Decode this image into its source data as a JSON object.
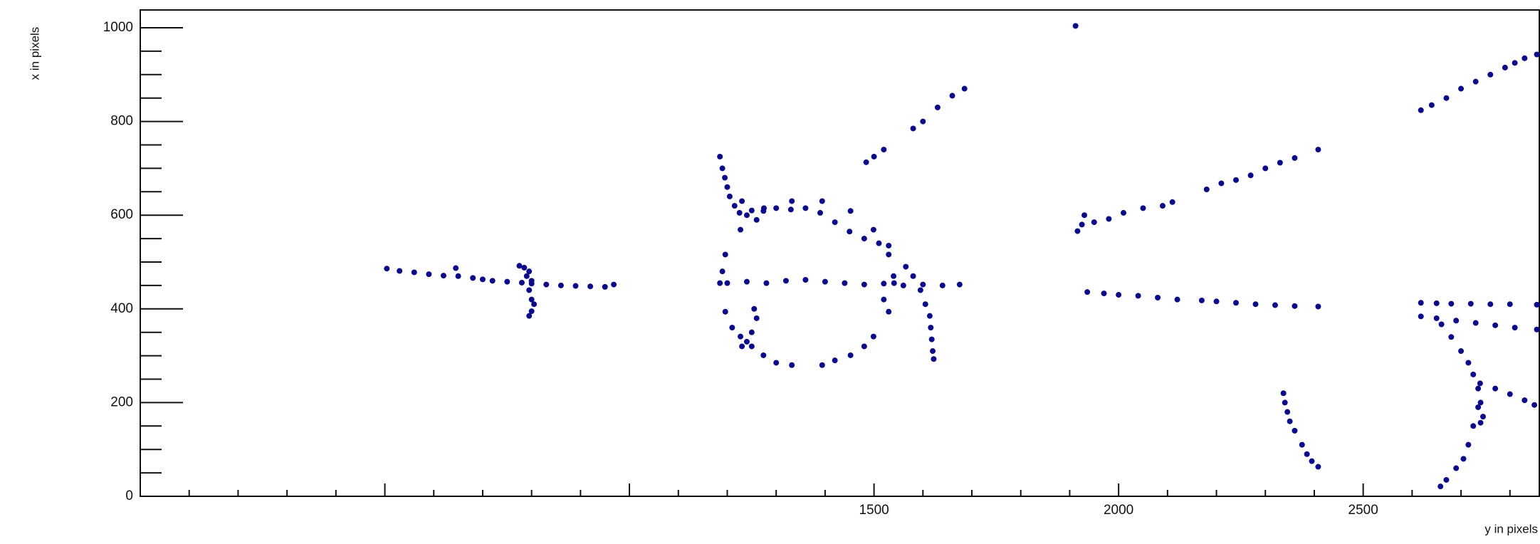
{
  "chart_data": {
    "type": "scatter",
    "x_label": "y in pixels",
    "y_label": "x in pixels",
    "color": "#0b0b8a",
    "xlim": [
      0,
      2860
    ],
    "ylim": [
      0,
      1038
    ],
    "xticks": [
      1500,
      2000,
      2500
    ],
    "yticks": [
      0,
      200,
      400,
      600,
      800,
      1000
    ],
    "x": [
      504,
      530,
      560,
      590,
      620,
      645,
      650,
      680,
      700,
      720,
      750,
      780,
      800,
      830,
      860,
      890,
      920,
      950,
      968,
      775,
      785,
      795,
      790,
      800,
      795,
      800,
      805,
      800,
      795,
      1541,
      1530,
      1499,
      1452,
      1394,
      1332,
      1274,
      1227,
      1196,
      1185,
      1196,
      1227,
      1274,
      1332,
      1394,
      1452,
      1499,
      1530,
      1540,
      1520,
      1300,
      1420,
      1480,
      1210,
      1250,
      1190,
      1185,
      1190,
      1195,
      1200,
      1205,
      1215,
      1225,
      1240,
      1250,
      1230,
      1260,
      1275,
      1300,
      1330,
      1360,
      1390,
      1420,
      1450,
      1480,
      1510,
      1530,
      1255,
      1260,
      1250,
      1240,
      1230,
      1200,
      1240,
      1280,
      1320,
      1360,
      1400,
      1440,
      1480,
      1520,
      1560,
      1600,
      1640,
      1675,
      1565,
      1580,
      1595,
      1605,
      1614,
      1616,
      1618,
      1620,
      1622,
      1484,
      1500,
      1520,
      1580,
      1600,
      1630,
      1660,
      1685,
      1912,
      1916,
      1925,
      1930,
      1950,
      1980,
      2010,
      2050,
      2090,
      2110,
      2180,
      2210,
      2240,
      2270,
      2300,
      2330,
      2360,
      2408,
      1936,
      1970,
      2000,
      2040,
      2080,
      2120,
      2170,
      2200,
      2240,
      2280,
      2320,
      2360,
      2408,
      2337,
      2340,
      2345,
      2350,
      2360,
      2375,
      2385,
      2395,
      2408,
      2618,
      2640,
      2670,
      2700,
      2730,
      2760,
      2790,
      2810,
      2830,
      2855,
      2618,
      2650,
      2680,
      2720,
      2760,
      2800,
      2855,
      2618,
      2650,
      2690,
      2730,
      2770,
      2810,
      2855,
      2660,
      2680,
      2700,
      2715,
      2725,
      2735,
      2740,
      2745,
      2740,
      2739,
      2770,
      2800,
      2830,
      2850,
      2658,
      2670,
      2690,
      2705,
      2715,
      2725,
      2735
    ],
    "values": [
      486,
      481,
      478,
      474,
      471,
      487,
      470,
      466,
      463,
      460,
      458,
      456,
      454,
      452,
      450,
      449,
      448,
      447,
      452,
      492,
      488,
      480,
      470,
      460,
      440,
      420,
      410,
      395,
      385,
      455,
      516,
      569,
      609,
      630,
      630,
      609,
      569,
      516,
      455,
      394,
      341,
      301,
      280,
      280,
      301,
      341,
      394,
      470,
      420,
      285,
      290,
      320,
      360,
      320,
      480,
      725,
      700,
      680,
      660,
      640,
      620,
      605,
      600,
      610,
      630,
      590,
      615,
      615,
      612,
      615,
      605,
      585,
      565,
      550,
      540,
      535,
      400,
      380,
      350,
      330,
      320,
      455,
      458,
      455,
      460,
      462,
      458,
      455,
      452,
      454,
      450,
      452,
      450,
      452,
      490,
      470,
      440,
      410,
      385,
      360,
      335,
      310,
      293,
      713,
      725,
      740,
      785,
      800,
      830,
      855,
      870,
      1004,
      566,
      580,
      600,
      585,
      592,
      605,
      615,
      620,
      628,
      655,
      668,
      675,
      685,
      700,
      712,
      722,
      740,
      436,
      433,
      430,
      428,
      424,
      420,
      418,
      416,
      413,
      410,
      408,
      406,
      405,
      220,
      200,
      180,
      160,
      140,
      110,
      90,
      75,
      63,
      824,
      835,
      850,
      870,
      885,
      900,
      915,
      925,
      935,
      943,
      413,
      412,
      411,
      411,
      410,
      410,
      409,
      384,
      380,
      375,
      370,
      365,
      360,
      356,
      367,
      340,
      310,
      285,
      260,
      230,
      200,
      170,
      157,
      241,
      230,
      218,
      205,
      195,
      21,
      35,
      60,
      80,
      110,
      150,
      190
    ]
  }
}
